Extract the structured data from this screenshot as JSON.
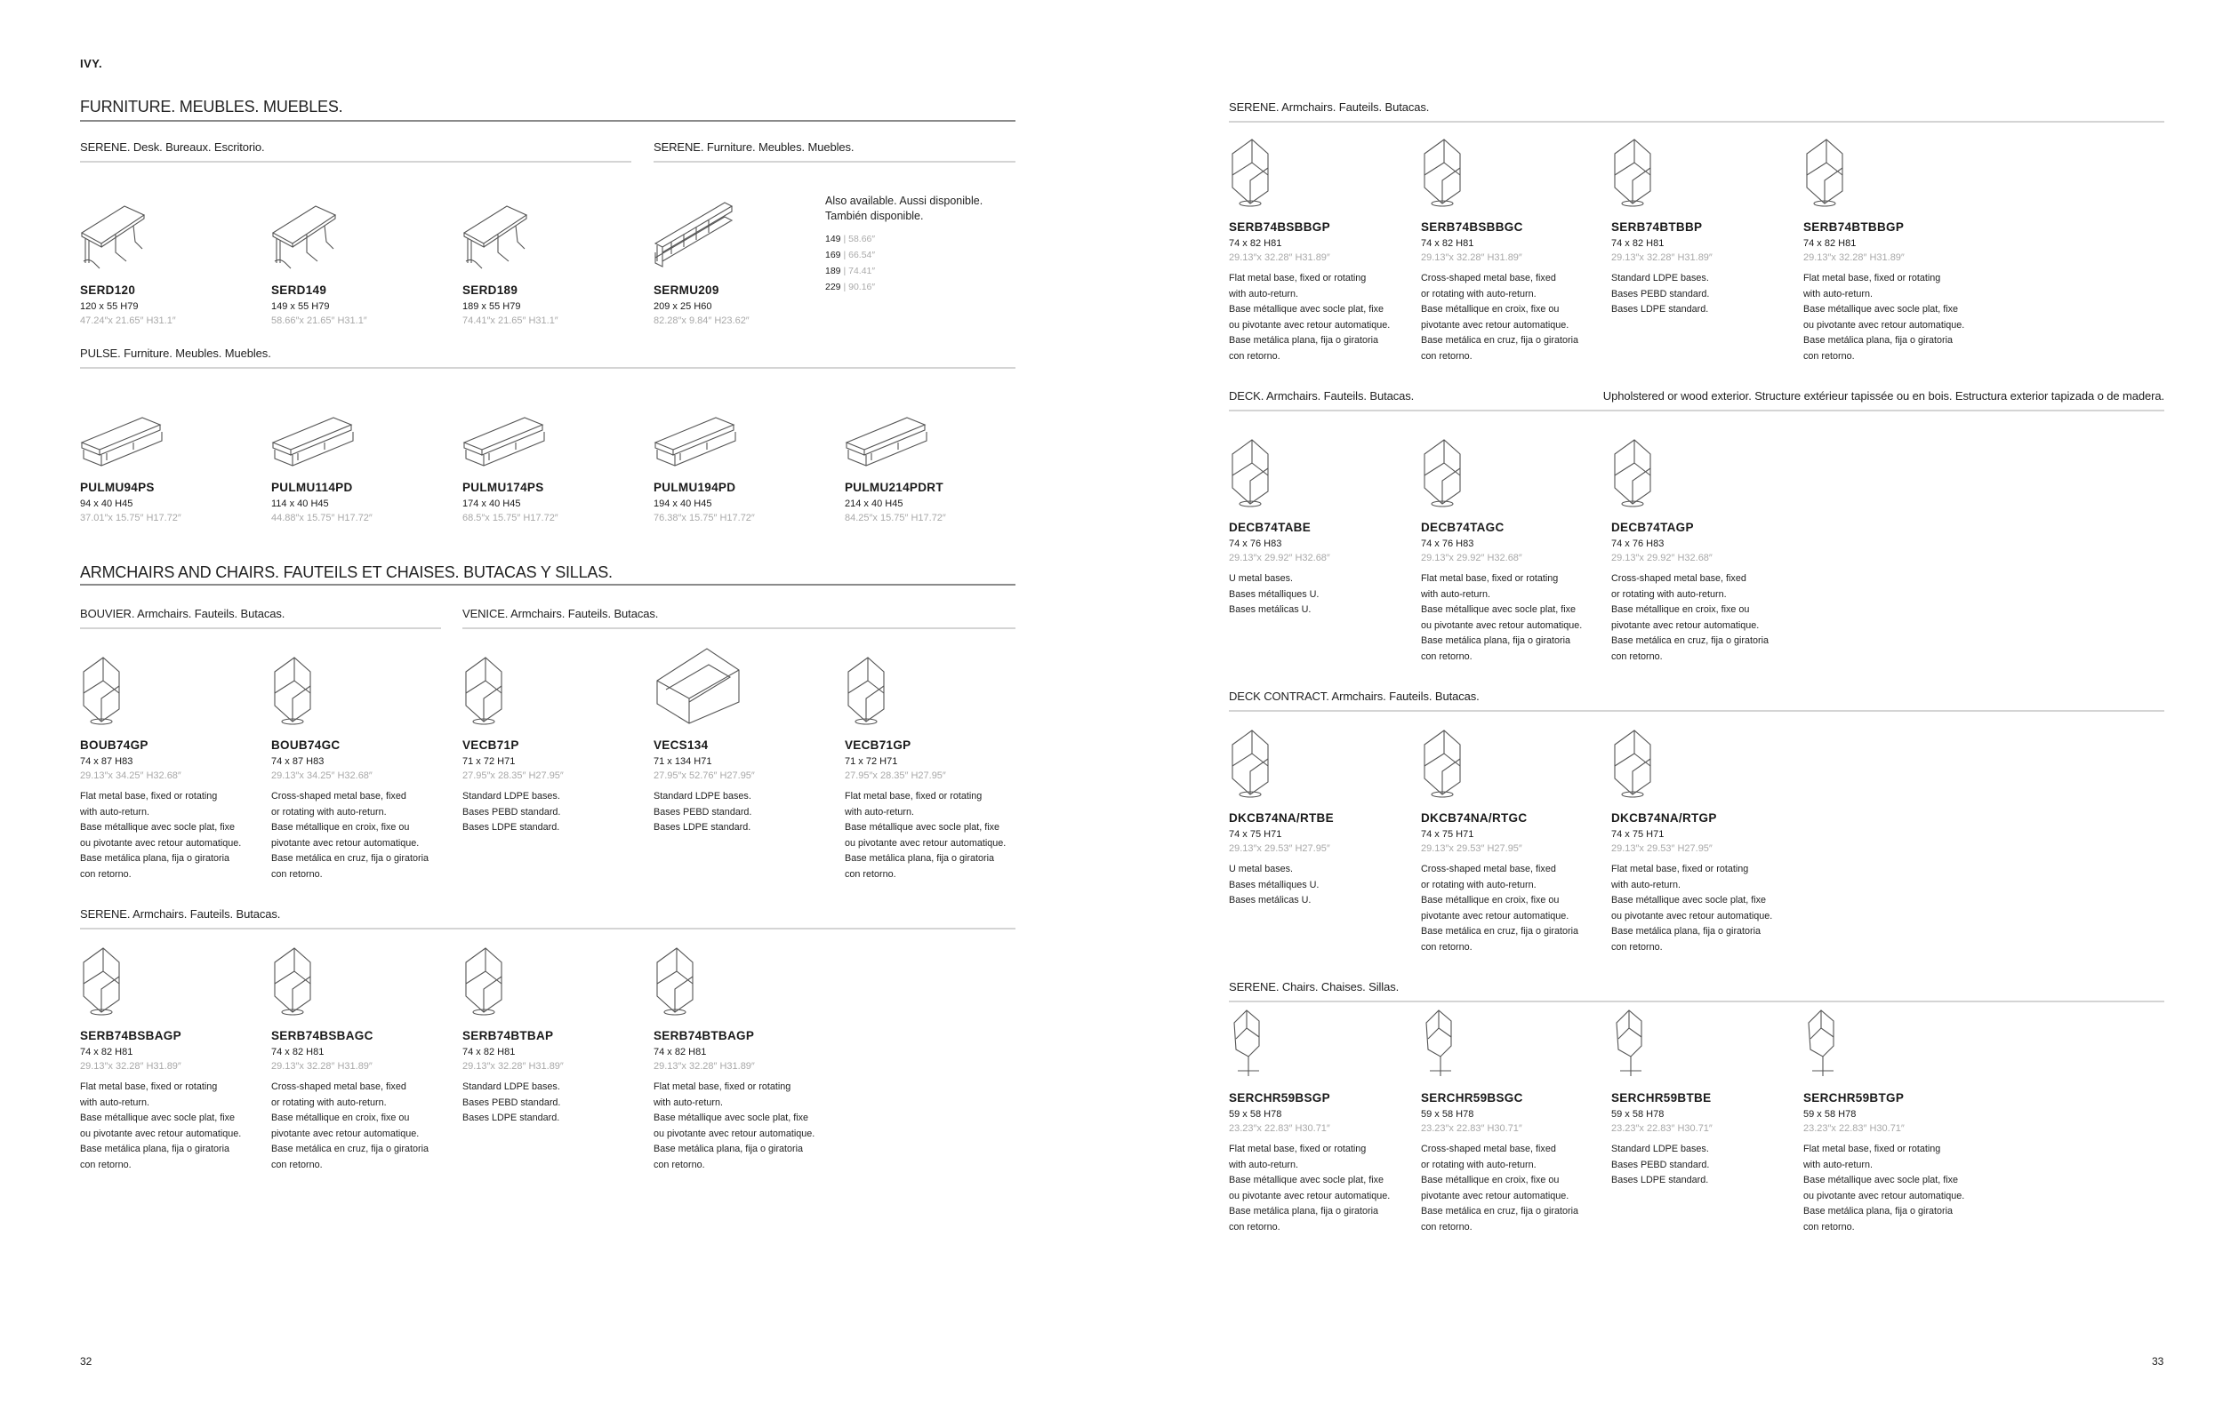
{
  "brand": "IVY.",
  "page_left": "32",
  "page_right": "33",
  "headings": {
    "furniture": "FURNITURE. MEUBLES. MUEBLES.",
    "armchairs": "ARMCHAIRS AND CHAIRS. FAUTEILS ET CHAISES. BUTACAS Y SILLAS."
  },
  "also_available": {
    "text": [
      "Also available. Aussi disponible.",
      "También disponible."
    ],
    "sizes": [
      {
        "cm": "149",
        "in": "58.66″"
      },
      {
        "cm": "169",
        "in": "66.54″"
      },
      {
        "cm": "189",
        "in": "74.41″"
      },
      {
        "cm": "229",
        "in": "90.16″"
      }
    ]
  },
  "deck_note": "Upholstered or wood exterior. Structure extérieur tapissée ou en bois. Estructura exterior tapizada o de madera.",
  "sections": [
    {
      "label": "SERENE. Desk. Bureaux. Escritorio.",
      "items": [
        {
          "code": "SERD120",
          "dims": "120 x 55  H79",
          "inch": "47.24″x 21.65″  H31.1″",
          "icon": "desk-icon",
          "desc": []
        },
        {
          "code": "SERD149",
          "dims": "149 x 55  H79",
          "inch": "58.66″x 21.65″  H31.1″",
          "icon": "desk-icon",
          "desc": []
        },
        {
          "code": "SERD189",
          "dims": "189 x 55  H79",
          "inch": "74.41″x 21.65″  H31.1″",
          "icon": "desk-icon",
          "desc": []
        }
      ]
    },
    {
      "label": "SERENE. Furniture. Meubles. Muebles.",
      "items": [
        {
          "code": "SERMU209",
          "dims": "209 x 25  H60",
          "inch": "82.28″x 9.84″  H23.62″",
          "icon": "shelf-icon",
          "desc": []
        }
      ]
    },
    {
      "label": "PULSE. Furniture. Meubles. Muebles.",
      "items": [
        {
          "code": "PULMU94PS",
          "dims": "94 x 40  H45",
          "inch": "37.01″x 15.75″  H17.72″",
          "icon": "low-cabinet-icon",
          "desc": []
        },
        {
          "code": "PULMU114PD",
          "dims": "114 x 40  H45",
          "inch": "44.88″x 15.75″  H17.72″",
          "icon": "low-cabinet-icon",
          "desc": []
        },
        {
          "code": "PULMU174PS",
          "dims": "174 x 40  H45",
          "inch": "68.5″x 15.75″  H17.72″",
          "icon": "low-cabinet-icon",
          "desc": []
        },
        {
          "code": "PULMU194PD",
          "dims": "194 x 40  H45",
          "inch": "76.38″x 15.75″  H17.72″",
          "icon": "low-cabinet-icon",
          "desc": []
        },
        {
          "code": "PULMU214PDRT",
          "dims": "214 x 40  H45",
          "inch": "84.25″x 15.75″  H17.72″",
          "icon": "low-cabinet-icon",
          "desc": []
        }
      ]
    },
    {
      "label": "BOUVIER. Armchairs. Fauteils. Butacas.",
      "items": [
        {
          "code": "BOUB74GP",
          "dims": "74 x 87  H83",
          "inch": "29.13″x 34.25″  H32.68″",
          "icon": "armchair-icon",
          "desc": [
            "Flat metal base, fixed or rotating",
            "with auto-return.",
            "Base métallique avec socle plat, fixe",
            "ou pivotante avec retour automatique.",
            "Base metálica plana, fija o giratoria",
            "con retorno."
          ]
        },
        {
          "code": "BOUB74GC",
          "dims": "74 x 87  H83",
          "inch": "29.13″x 34.25″  H32.68″",
          "icon": "armchair-icon",
          "desc": [
            "Cross-shaped metal base, fixed",
            "or rotating with auto-return.",
            "Base métallique en croix, fixe ou",
            "pivotante avec retour automatique.",
            "Base metálica en cruz, fija o giratoria",
            "con retorno."
          ]
        }
      ]
    },
    {
      "label": "VENICE. Armchairs. Fauteils. Butacas.",
      "items": [
        {
          "code": "VECB71P",
          "dims": "71 x 72  H71",
          "inch": "27.95″x 28.35″  H27.95″",
          "icon": "armchair-icon",
          "desc": [
            "Standard LDPE bases.",
            "Bases PEBD standard.",
            "Bases LDPE standard."
          ]
        },
        {
          "code": "VECS134",
          "dims": "71 x 134  H71",
          "inch": "27.95″x 52.76″  H27.95″",
          "icon": "sofa-icon",
          "desc": [
            "Standard LDPE bases.",
            "Bases PEBD standard.",
            "Bases LDPE standard."
          ]
        },
        {
          "code": "VECB71GP",
          "dims": "71 x 72  H71",
          "inch": "27.95″x 28.35″  H27.95″",
          "icon": "armchair-icon",
          "desc": [
            "Flat metal base, fixed or rotating",
            "with auto-return.",
            "Base métallique avec socle plat, fixe",
            "ou pivotante avec retour automatique.",
            "Base metálica plana, fija o giratoria",
            "con retorno."
          ]
        }
      ]
    },
    {
      "label": "SERENE. Armchairs. Fauteils. Butacas.",
      "items": [
        {
          "code": "SERB74BSBAGP",
          "dims": "74 x 82  H81",
          "inch": "29.13″x 32.28″  H31.89″",
          "icon": "armchair-icon",
          "desc": [
            "Flat metal base, fixed or rotating",
            "with auto-return.",
            "Base métallique avec socle plat, fixe",
            "ou pivotante avec retour automatique.",
            "Base metálica plana, fija o giratoria",
            "con retorno."
          ]
        },
        {
          "code": "SERB74BSBAGC",
          "dims": "74 x 82  H81",
          "inch": "29.13″x 32.28″  H31.89″",
          "icon": "armchair-icon",
          "desc": [
            "Cross-shaped metal base, fixed",
            "or rotating with auto-return.",
            "Base métallique en croix, fixe ou",
            "pivotante avec retour automatique.",
            "Base metálica en cruz, fija o giratoria",
            "con retorno."
          ]
        },
        {
          "code": "SERB74BTBAP",
          "dims": "74 x 82  H81",
          "inch": "29.13″x 32.28″  H31.89″",
          "icon": "armchair-icon",
          "desc": [
            "Standard LDPE bases.",
            "Bases PEBD standard.",
            "Bases LDPE standard."
          ]
        },
        {
          "code": "SERB74BTBAGP",
          "dims": "74 x 82  H81",
          "inch": "29.13″x 32.28″  H31.89″",
          "icon": "armchair-icon",
          "desc": [
            "Flat metal base, fixed or rotating",
            "with auto-return.",
            "Base métallique avec socle plat, fixe",
            "ou pivotante avec retour automatique.",
            "Base metálica plana, fija o giratoria",
            "con retorno."
          ]
        }
      ]
    },
    {
      "label": "SERENE. Armchairs. Fauteils. Butacas.",
      "items": [
        {
          "code": "SERB74BSBBGP",
          "dims": "74 x 82  H81",
          "inch": "29.13″x 32.28″  H31.89″",
          "icon": "armchair-icon",
          "desc": [
            "Flat metal base, fixed or rotating",
            "with auto-return.",
            "Base métallique avec socle plat, fixe",
            "ou pivotante avec retour automatique.",
            "Base metálica plana, fija o giratoria",
            "con retorno."
          ]
        },
        {
          "code": "SERB74BSBBGC",
          "dims": "74 x 82  H81",
          "inch": "29.13″x 32.28″  H31.89″",
          "icon": "armchair-icon",
          "desc": [
            "Cross-shaped metal base, fixed",
            "or rotating with auto-return.",
            "Base métallique en croix, fixe ou",
            "pivotante avec retour automatique.",
            "Base metálica en cruz, fija o giratoria",
            "con retorno."
          ]
        },
        {
          "code": "SERB74BTBBP",
          "dims": "74 x 82  H81",
          "inch": "29.13″x 32.28″  H31.89″",
          "icon": "armchair-icon",
          "desc": [
            "Standard LDPE bases.",
            "Bases PEBD standard.",
            "Bases LDPE standard."
          ]
        },
        {
          "code": "SERB74BTBBGP",
          "dims": "74 x 82  H81",
          "inch": "29.13″x 32.28″  H31.89″",
          "icon": "armchair-icon",
          "desc": [
            "Flat metal base, fixed or rotating",
            "with auto-return.",
            "Base métallique avec socle plat, fixe",
            "ou pivotante avec retour automatique.",
            "Base metálica plana, fija o giratoria",
            "con retorno."
          ]
        }
      ]
    },
    {
      "label": "DECK. Armchairs. Fauteils. Butacas.",
      "items": [
        {
          "code": "DECB74TABE",
          "dims": "74 x 76  H83",
          "inch": "29.13″x 29.92″  H32.68″",
          "icon": "armchair-icon",
          "desc": [
            "U metal bases.",
            "Bases métalliques U.",
            "Bases metálicas U."
          ]
        },
        {
          "code": "DECB74TAGC",
          "dims": "74 x 76  H83",
          "inch": "29.13″x 29.92″  H32.68″",
          "icon": "armchair-icon",
          "desc": [
            "Flat metal base, fixed or rotating",
            "with auto-return.",
            "Base métallique avec socle plat, fixe",
            "ou pivotante avec retour automatique.",
            "Base metálica plana, fija o giratoria",
            "con retorno."
          ]
        },
        {
          "code": "DECB74TAGP",
          "dims": "74 x 76  H83",
          "inch": "29.13″x 29.92″  H32.68″",
          "icon": "armchair-icon",
          "desc": [
            "Cross-shaped metal base, fixed",
            "or rotating with auto-return.",
            "Base métallique en croix, fixe ou",
            "pivotante avec retour automatique.",
            "Base metálica en cruz, fija o giratoria",
            "con retorno."
          ]
        }
      ]
    },
    {
      "label": "DECK CONTRACT. Armchairs. Fauteils. Butacas.",
      "items": [
        {
          "code": "DKCB74NA/RTBE",
          "dims": "74 x 75  H71",
          "inch": "29.13″x 29.53″  H27.95″",
          "icon": "armchair-icon",
          "desc": [
            "U metal bases.",
            "Bases métalliques U.",
            "Bases metálicas U."
          ]
        },
        {
          "code": "DKCB74NA/RTGC",
          "dims": "74 x 75  H71",
          "inch": "29.13″x 29.53″  H27.95″",
          "icon": "armchair-icon",
          "desc": [
            "Cross-shaped metal base, fixed",
            "or rotating with auto-return.",
            "Base métallique en croix, fixe ou",
            "pivotante avec retour automatique.",
            "Base metálica en cruz, fija o giratoria",
            "con retorno."
          ]
        },
        {
          "code": "DKCB74NA/RTGP",
          "dims": "74 x 75  H71",
          "inch": "29.13″x 29.53″  H27.95″",
          "icon": "armchair-icon",
          "desc": [
            "Flat metal base, fixed or rotating",
            "with auto-return.",
            "Base métallique avec socle plat, fixe",
            "ou pivotante avec retour automatique.",
            "Base metálica plana, fija o giratoria",
            "con retorno."
          ]
        }
      ]
    },
    {
      "label": "SERENE. Chairs. Chaises. Sillas.",
      "items": [
        {
          "code": "SERCHR59BSGP",
          "dims": "59 x 58  H78",
          "inch": "23.23″x 22.83″  H30.71″",
          "icon": "chair-icon",
          "desc": [
            "Flat metal base, fixed or rotating",
            "with auto-return.",
            "Base métallique avec socle plat, fixe",
            "ou pivotante avec retour automatique.",
            "Base metálica plana, fija o giratoria",
            "con retorno."
          ]
        },
        {
          "code": "SERCHR59BSGC",
          "dims": "59 x 58  H78",
          "inch": "23.23″x 22.83″  H30.71″",
          "icon": "chair-icon",
          "desc": [
            "Cross-shaped metal base, fixed",
            "or rotating with auto-return.",
            "Base métallique en croix, fixe ou",
            "pivotante avec retour automatique.",
            "Base metálica en cruz, fija o giratoria",
            "con retorno."
          ]
        },
        {
          "code": "SERCHR59BTBE",
          "dims": "59 x 58  H78",
          "inch": "23.23″x 22.83″  H30.71″",
          "icon": "chair-icon",
          "desc": [
            "Standard LDPE bases.",
            "Bases PEBD standard.",
            "Bases LDPE standard."
          ]
        },
        {
          "code": "SERCHR59BTGP",
          "dims": "59 x 58  H78",
          "inch": "23.23″x 22.83″  H30.71″",
          "icon": "chair-icon",
          "desc": [
            "Flat metal base, fixed or rotating",
            "with auto-return.",
            "Base métallique avec socle plat, fixe",
            "ou pivotante avec retour automatique.",
            "Base metálica plana, fija o giratoria",
            "con retorno."
          ]
        }
      ]
    }
  ]
}
